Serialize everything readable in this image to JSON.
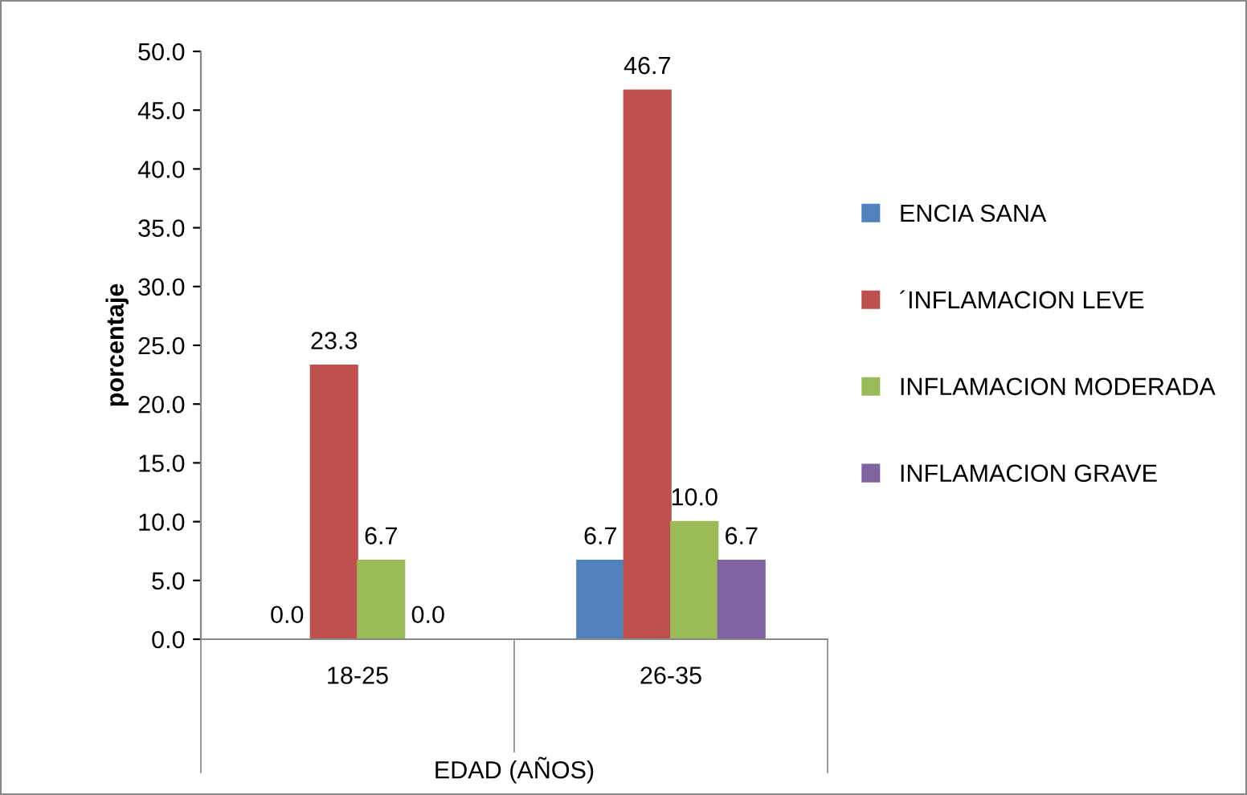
{
  "chart_data": {
    "type": "bar",
    "categories": [
      "18-25",
      "26-35"
    ],
    "xlabel": "EDAD (AÑOS)",
    "ylabel": "porcentaje",
    "series": [
      {
        "name": "ENCIA SANA",
        "color": "#4f81bd",
        "values": [
          0.0,
          6.7
        ],
        "value_labels": [
          "0.0",
          "6.7"
        ]
      },
      {
        "name": "´INFLAMACION LEVE",
        "color": "#c0504d",
        "values": [
          23.3,
          46.7
        ],
        "value_labels": [
          "23.3",
          "46.7"
        ]
      },
      {
        "name": "INFLAMACION MODERADA",
        "color": "#9bbb59",
        "values": [
          6.7,
          10.0
        ],
        "value_labels": [
          "6.7",
          "10.0"
        ]
      },
      {
        "name": "INFLAMACION GRAVE",
        "color": "#8064a2",
        "values": [
          0.0,
          6.7
        ],
        "value_labels": [
          "0.0",
          "6.7"
        ]
      }
    ],
    "ylim": [
      0,
      50
    ],
    "yticks": [
      {
        "value": 0,
        "label": "0.0"
      },
      {
        "value": 5,
        "label": "5.0"
      },
      {
        "value": 10,
        "label": "10.0"
      },
      {
        "value": 15,
        "label": "15.0"
      },
      {
        "value": 20,
        "label": "20.0"
      },
      {
        "value": 25,
        "label": "25.0"
      },
      {
        "value": 30,
        "label": "30.0"
      },
      {
        "value": 35,
        "label": "35.0"
      },
      {
        "value": 40,
        "label": "40.0"
      },
      {
        "value": 45,
        "label": "45.0"
      },
      {
        "value": 50,
        "label": "50.0"
      }
    ],
    "grid": false,
    "legend": "right"
  }
}
